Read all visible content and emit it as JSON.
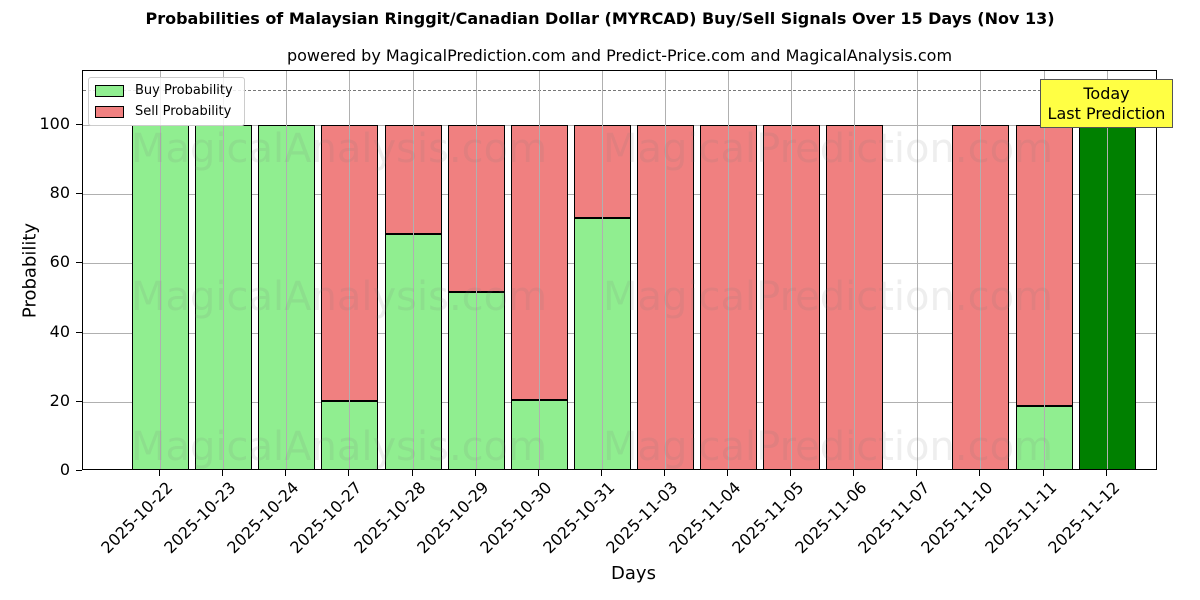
{
  "header": {
    "title": "Probabilities of Malaysian Ringgit/Canadian Dollar (MYRCAD) Buy/Sell Signals Over 15 Days (Nov 13)",
    "subtitle": "powered by MagicalPrediction.com and Predict-Price.com and MagicalAnalysis.com"
  },
  "legend": {
    "buy_label": "Buy Probability",
    "sell_label": "Sell Probability"
  },
  "annotation": {
    "line1": "Today",
    "line2": "Last Prediction"
  },
  "axes": {
    "xlabel": "Days",
    "ylabel": "Probability",
    "yticks": [
      "0",
      "20",
      "40",
      "60",
      "80",
      "100"
    ]
  },
  "watermarks": [
    "MagicalAnalysis.com",
    "MagicalPrediction.com"
  ],
  "colors": {
    "buy": "#90ee90",
    "sell": "#f08080",
    "today": "#008000",
    "annotation_bg": "#ffff44"
  },
  "chart_data": {
    "type": "bar",
    "stacked": true,
    "title": "Probabilities of Malaysian Ringgit/Canadian Dollar (MYRCAD) Buy/Sell Signals Over 15 Days (Nov 13)",
    "subtitle": "powered by MagicalPrediction.com and Predict-Price.com and MagicalAnalysis.com",
    "xlabel": "Days",
    "ylabel": "Probability",
    "ylim": [
      0,
      115
    ],
    "yticks": [
      0,
      20,
      40,
      60,
      80,
      100
    ],
    "grid": true,
    "legend_position": "upper left",
    "reference_line": {
      "y": 110,
      "style": "dashed"
    },
    "categories": [
      "2025-10-22",
      "2025-10-23",
      "2025-10-24",
      "2025-10-27",
      "2025-10-28",
      "2025-10-29",
      "2025-10-30",
      "2025-10-31",
      "2025-11-03",
      "2025-11-04",
      "2025-11-05",
      "2025-11-06",
      "2025-11-07",
      "2025-11-10",
      "2025-11-11",
      "2025-11-12"
    ],
    "series": [
      {
        "name": "Buy Probability",
        "values": [
          100,
          100,
          100,
          20.2,
          68.5,
          51.7,
          20.5,
          73.1,
          0,
          0,
          0,
          0,
          0,
          0,
          18.8,
          100
        ]
      },
      {
        "name": "Sell Probability",
        "values": [
          0,
          0,
          0,
          79.8,
          31.5,
          48.3,
          79.5,
          26.9,
          100,
          100,
          100,
          100,
          0,
          100,
          81.2,
          0
        ]
      }
    ],
    "annotations": [
      {
        "text": "Today\nLast Prediction",
        "x": "2025-11-12"
      }
    ]
  }
}
